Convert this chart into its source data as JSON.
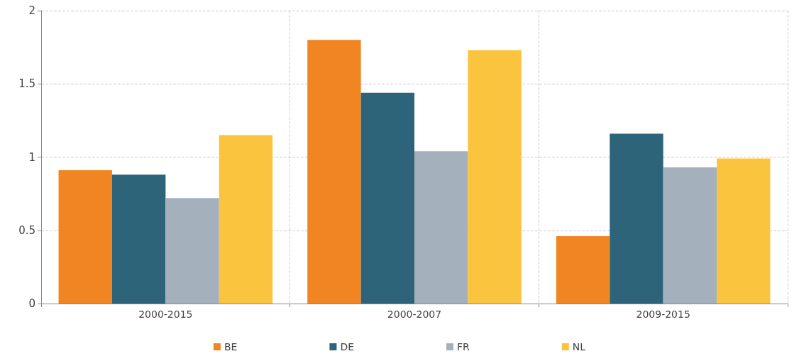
{
  "chart_data": {
    "type": "bar",
    "categories": [
      "2000-2015",
      "2000-2007",
      "2009-2015"
    ],
    "series": [
      {
        "name": "BE",
        "color": "#f08522",
        "values": [
          0.91,
          1.8,
          0.46
        ]
      },
      {
        "name": "DE",
        "color": "#2d6479",
        "values": [
          0.88,
          1.44,
          1.16
        ]
      },
      {
        "name": "FR",
        "color": "#a5b0bd",
        "values": [
          0.72,
          1.04,
          0.93
        ]
      },
      {
        "name": "NL",
        "color": "#fbc43e",
        "values": [
          1.15,
          1.73,
          0.99
        ]
      }
    ],
    "ylim": [
      0,
      2
    ],
    "yticks": [
      0,
      0.5,
      1,
      1.5,
      2
    ],
    "grid": true,
    "legend": "bottom"
  }
}
